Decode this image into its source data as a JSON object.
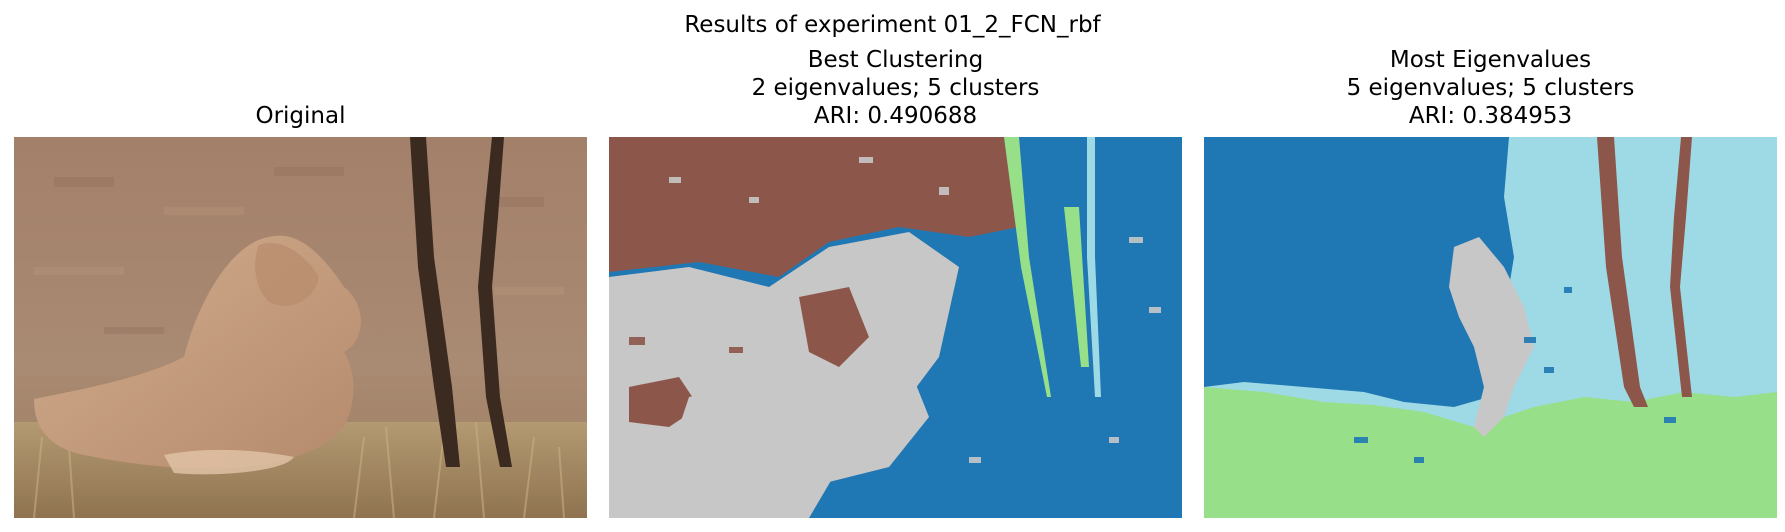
{
  "figure": {
    "suptitle": "Results of experiment 01_2_FCN_rbf"
  },
  "panels": [
    {
      "title_lines": [
        "Original"
      ],
      "kind": "photo",
      "subject": "lioness-lying-by-trees"
    },
    {
      "title_lines": [
        "Best Clustering",
        "2 eigenvalues; 5 clusters",
        "ARI: 0.490688"
      ],
      "kind": "cluster-map",
      "ari": 0.490688,
      "eigenvalues": 2,
      "clusters": 5
    },
    {
      "title_lines": [
        "Most Eigenvalues",
        "5 eigenvalues; 5 clusters",
        "ARI: 0.384953"
      ],
      "kind": "cluster-map",
      "ari": 0.384953,
      "eigenvalues": 5,
      "clusters": 5
    }
  ],
  "colors": {
    "cluster_blue": "#1f77b4",
    "cluster_brown": "#8c564b",
    "cluster_gray": "#c7c7c7",
    "cluster_green": "#98df8a",
    "cluster_cyan": "#9edae5",
    "soil": "#a98a72",
    "grass": "#b99a6e",
    "trunk": "#3a2a20",
    "lion": "#c9a07f"
  }
}
